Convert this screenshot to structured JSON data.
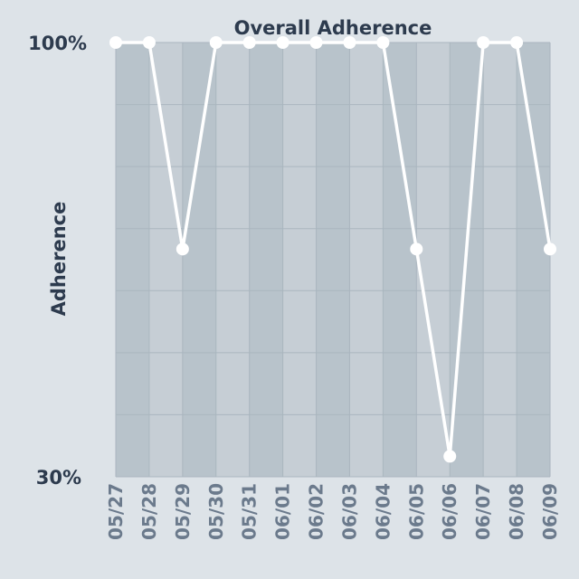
{
  "chart_data": {
    "type": "line",
    "title": "Overall Adherence",
    "ylabel": "Adherence",
    "xlabel": "",
    "ylim": [
      30,
      100
    ],
    "y_tick_labels": [
      "100%",
      "30%"
    ],
    "categories": [
      "05/27",
      "05/28",
      "05/29",
      "05/30",
      "05/31",
      "06/01",
      "06/02",
      "06/03",
      "06/04",
      "06/05",
      "06/06",
      "06/07",
      "06/08",
      "06/09"
    ],
    "series": [
      {
        "values": [
          100,
          100,
          66.7,
          100,
          100,
          100,
          100,
          100,
          100,
          66.7,
          33.3,
          100,
          100,
          66.7
        ]
      }
    ],
    "grid": true,
    "colors": {
      "line": "#ffffff",
      "marker": "#ffffff",
      "column_dark": "#b8c3cb",
      "column_light": "#c6ced5",
      "grid": "#aab6bf",
      "text_dark": "#2d3b4e",
      "text_muted": "#6b7a8c"
    }
  }
}
